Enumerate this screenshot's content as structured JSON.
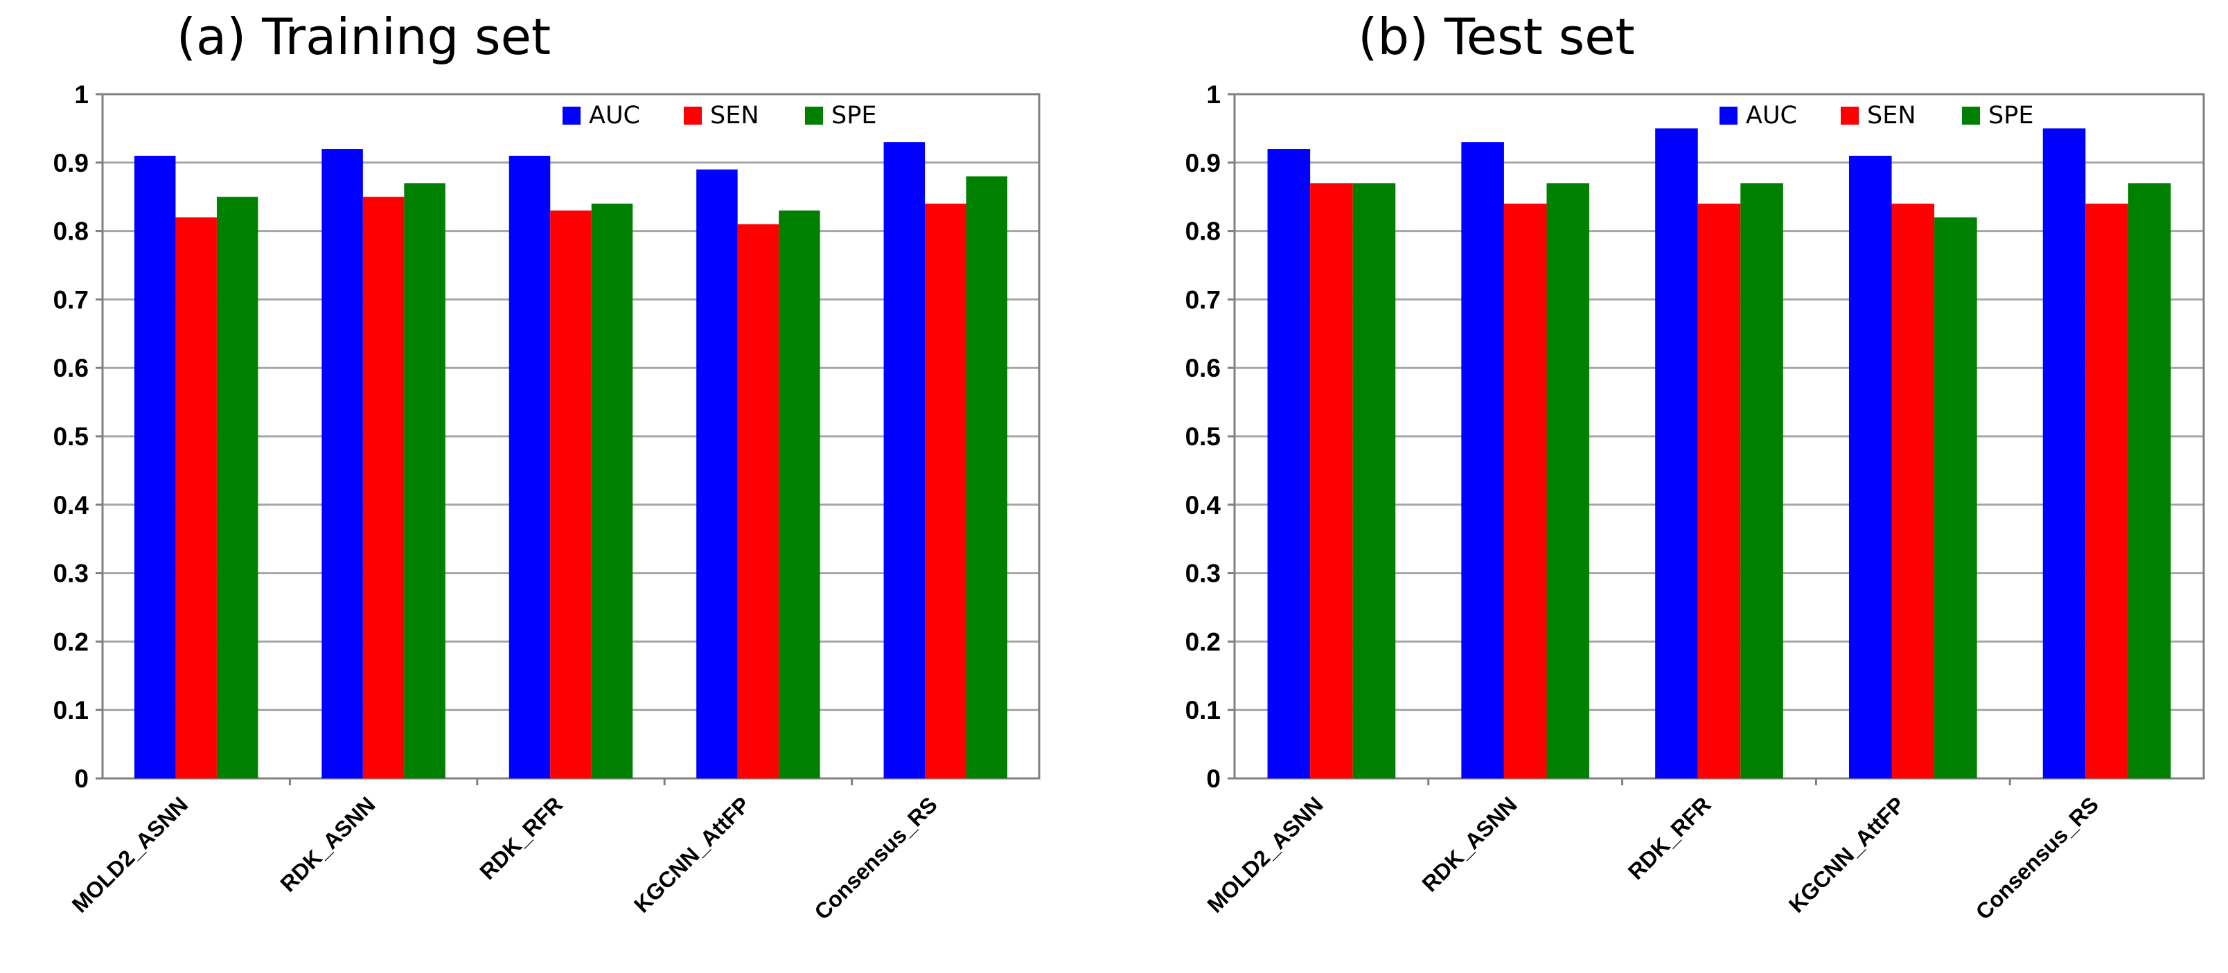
{
  "chart_data": [
    {
      "type": "bar",
      "title": "(a) Training set",
      "xlabel": "",
      "ylabel": "",
      "ylim": [
        0,
        1
      ],
      "yticks": [
        "0",
        "0.1",
        "0.2",
        "0.3",
        "0.4",
        "0.5",
        "0.6",
        "0.7",
        "0.8",
        "0.9",
        "1"
      ],
      "grid": true,
      "legend_position": "top-right",
      "categories": [
        "MOLD2_ASNN",
        "RDK_ASNN",
        "RDK_RFR",
        "KGCNN_AttFP",
        "Consensus_RS"
      ],
      "series": [
        {
          "name": "AUC",
          "color": "#0000ff",
          "values": [
            0.91,
            0.92,
            0.91,
            0.89,
            0.93
          ]
        },
        {
          "name": "SEN",
          "color": "#ff0000",
          "values": [
            0.82,
            0.85,
            0.83,
            0.81,
            0.84
          ]
        },
        {
          "name": "SPE",
          "color": "#008000",
          "values": [
            0.85,
            0.87,
            0.84,
            0.83,
            0.88
          ]
        }
      ]
    },
    {
      "type": "bar",
      "title": "(b) Test set",
      "xlabel": "",
      "ylabel": "",
      "ylim": [
        0,
        1
      ],
      "yticks": [
        "0",
        "0.1",
        "0.2",
        "0.3",
        "0.4",
        "0.5",
        "0.6",
        "0.7",
        "0.8",
        "0.9",
        "1"
      ],
      "grid": true,
      "legend_position": "top-right",
      "categories": [
        "MOLD2_ASNN",
        "RDK_ASNN",
        "RDK_RFR",
        "KGCNN_AttFP",
        "Consensus_RS"
      ],
      "series": [
        {
          "name": "AUC",
          "color": "#0000ff",
          "values": [
            0.92,
            0.93,
            0.95,
            0.91,
            0.95
          ]
        },
        {
          "name": "SEN",
          "color": "#ff0000",
          "values": [
            0.87,
            0.84,
            0.84,
            0.84,
            0.84
          ]
        },
        {
          "name": "SPE",
          "color": "#008000",
          "values": [
            0.87,
            0.87,
            0.87,
            0.82,
            0.87
          ]
        }
      ]
    }
  ]
}
